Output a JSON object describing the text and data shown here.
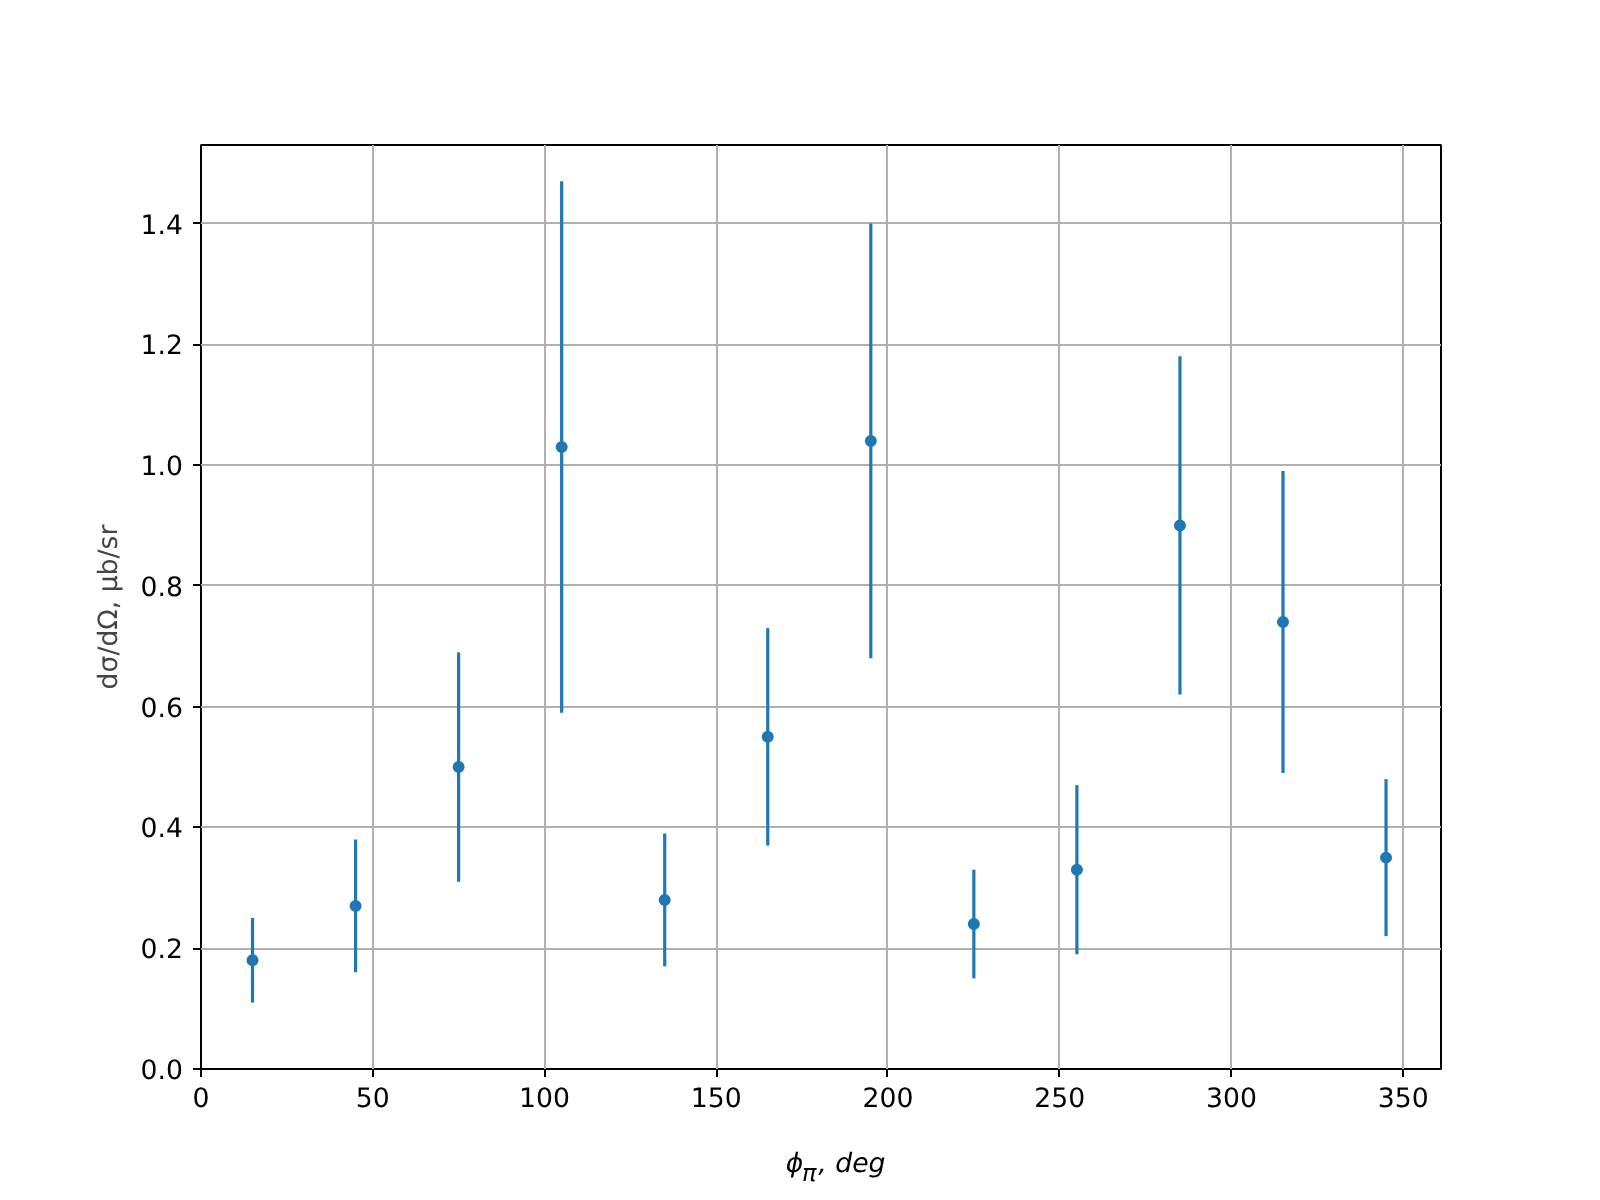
{
  "chart_data": {
    "type": "scatter",
    "xlabel": "ϕ$_{π}$, deg",
    "ylabel": "dσ/dΩ, μb/sr",
    "x": [
      15,
      45,
      75,
      105,
      135,
      165,
      195,
      225,
      255,
      285,
      315,
      345
    ],
    "series": [
      {
        "color": "#1f77b4",
        "values": [
          0.18,
          0.27,
          0.5,
          1.03,
          0.28,
          0.55,
          1.04,
          0.24,
          0.33,
          0.9,
          0.74,
          0.35
        ],
        "errors": [
          0.07,
          0.11,
          0.19,
          0.44,
          0.11,
          0.18,
          0.36,
          0.09,
          0.14,
          0.28,
          0.25,
          0.13
        ]
      }
    ],
    "xlim": [
      0,
      361
    ],
    "ylim": [
      0,
      1.53
    ],
    "xticks": [
      0,
      50,
      100,
      150,
      200,
      250,
      300,
      350
    ],
    "yticks": [
      {
        "value": 0,
        "label": "0.0"
      },
      0.2,
      0.4,
      0.6,
      0.8,
      {
        "value": 1,
        "label": "1.0"
      },
      1.2,
      1.4
    ],
    "grid": true,
    "marker": "circle"
  }
}
